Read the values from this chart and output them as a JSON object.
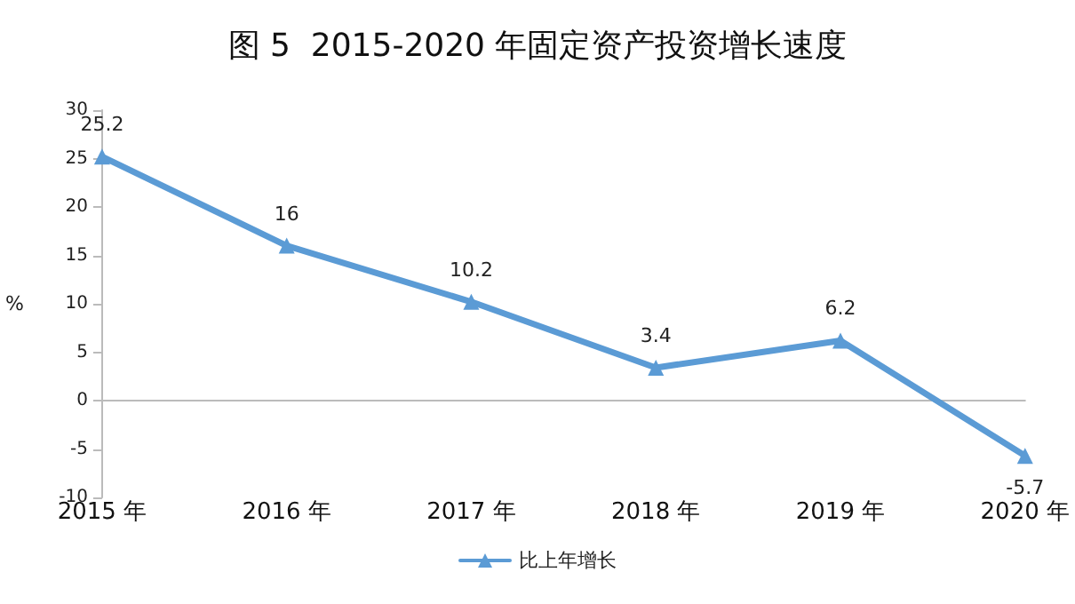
{
  "chart_data": {
    "type": "line",
    "title": "图 5  2015-2020 年固定资产投资增长速度",
    "ylabel": "%",
    "categories": [
      "2015 年",
      "2016 年",
      "2017 年",
      "2018 年",
      "2019 年",
      "2020 年"
    ],
    "series": [
      {
        "name": "比上年增长",
        "color": "#5b9bd5",
        "values": [
          25.2,
          16,
          10.2,
          3.4,
          6.2,
          -5.7
        ]
      }
    ],
    "ylim": [
      -10,
      30
    ],
    "yticks": [
      -10,
      -5,
      0,
      5,
      10,
      15,
      20,
      25,
      30
    ],
    "data_labels": true,
    "legend": "bottom",
    "marker": "triangle"
  }
}
